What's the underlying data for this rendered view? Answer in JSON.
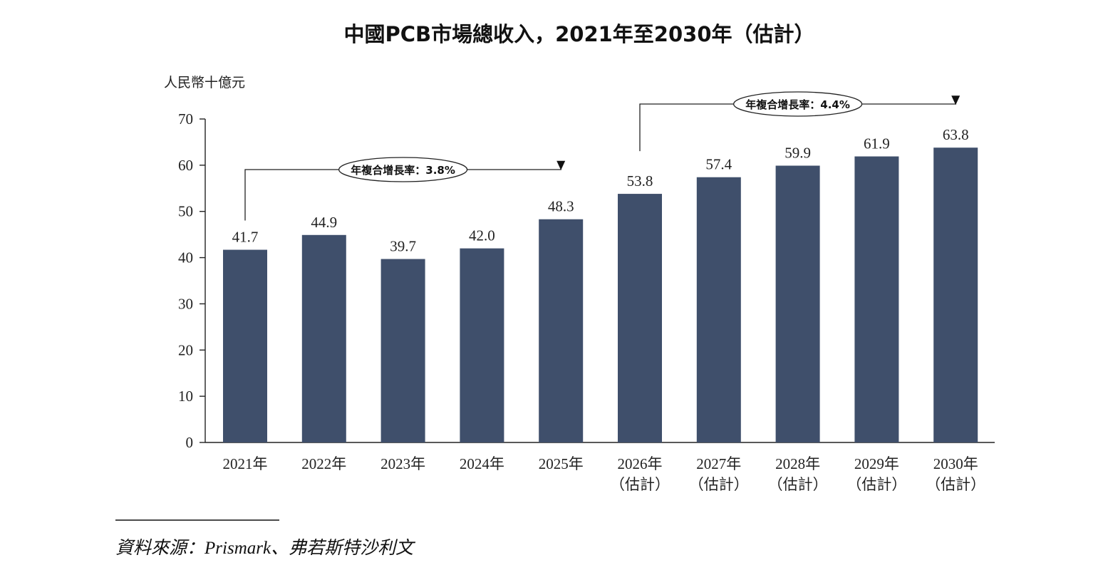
{
  "chart_data": {
    "type": "bar",
    "title": "中國PCB市場總收入，2021年至2030年（估計）",
    "ylabel": "人民幣十億元",
    "xlabel": "",
    "ylim": [
      0,
      70
    ],
    "yticks": [
      0,
      10,
      20,
      30,
      40,
      50,
      60,
      70
    ],
    "categories": [
      {
        "line1": "2021年",
        "line2": ""
      },
      {
        "line1": "2022年",
        "line2": ""
      },
      {
        "line1": "2023年",
        "line2": ""
      },
      {
        "line1": "2024年",
        "line2": ""
      },
      {
        "line1": "2025年",
        "line2": ""
      },
      {
        "line1": "2026年",
        "line2": "（估計）"
      },
      {
        "line1": "2027年",
        "line2": "（估計）"
      },
      {
        "line1": "2028年",
        "line2": "（估計）"
      },
      {
        "line1": "2029年",
        "line2": "（估計）"
      },
      {
        "line1": "2030年",
        "line2": "（估計）"
      }
    ],
    "values": [
      41.7,
      44.9,
      39.7,
      42.0,
      48.3,
      53.8,
      57.4,
      59.9,
      61.9,
      63.8
    ],
    "value_labels": [
      "41.7",
      "44.9",
      "39.7",
      "42.0",
      "48.3",
      "53.8",
      "57.4",
      "59.9",
      "61.9",
      "63.8"
    ],
    "bar_color": "#3f4f6b",
    "grid": false,
    "annotations": [
      {
        "label": "年複合增長率：3.8%",
        "from_index": 0,
        "to_index": 4
      },
      {
        "label": "年複合增長率：4.4%",
        "from_index": 5,
        "to_index": 9
      }
    ]
  },
  "source": {
    "prefix": "資料來源：",
    "latin": "Prismark",
    "rest": "、弗若斯特沙利文"
  }
}
